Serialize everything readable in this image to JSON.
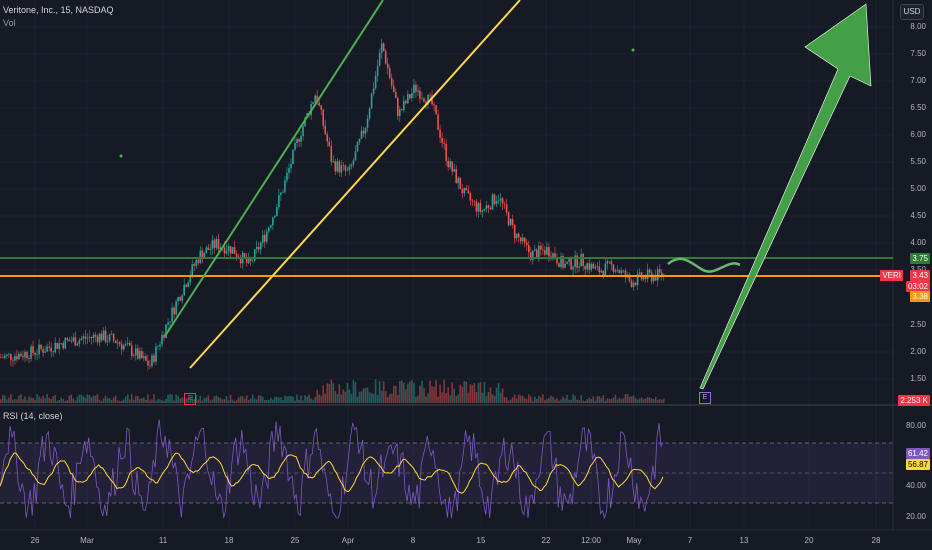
{
  "header": {
    "title": "Veritone, Inc., 15, NASDAQ",
    "vol_label": "Vol"
  },
  "currency_button": "USD",
  "price_axis": [
    "8.00",
    "7.50",
    "7.00",
    "6.50",
    "6.00",
    "5.50",
    "5.00",
    "4.50",
    "4.00",
    "3.50",
    "2.50",
    "2.00",
    "1.50"
  ],
  "rsi_axis": [
    "80.00",
    "40.00",
    "20.00"
  ],
  "time_axis": [
    "26",
    "Mar",
    "11",
    "18",
    "25",
    "Apr",
    "8",
    "15",
    "22",
    "12:00",
    "May",
    "7",
    "13",
    "20",
    "28"
  ],
  "price_labels": {
    "symbol": "VERI",
    "resistance": "3.75",
    "last": "3.43",
    "countdown": "03:02",
    "support": "3.38",
    "volume": "2.253 K"
  },
  "rsi": {
    "label": "RSI (14, close)",
    "value": "61.42",
    "ma_value": "56.87"
  },
  "earnings_markers": [
    "E",
    "E"
  ],
  "colors": {
    "background": "#161a25",
    "up": "#26a69a",
    "down": "#ef5350",
    "resistance": "#2e7d32",
    "support": "#ff9800",
    "channel_green": "#4caf50",
    "channel_yellow": "#ffd54f",
    "arrow": "#43a047",
    "rsi_line": "#7e57c2",
    "rsi_ma": "#fdd835",
    "symbol_tag": "#f23645"
  },
  "chart_data": {
    "type": "candlestick",
    "timeframe": "15",
    "x_labels": [
      "26",
      "Mar",
      "11",
      "18",
      "25",
      "Apr",
      "8",
      "15",
      "22",
      "12:00",
      "May",
      "7",
      "13",
      "20",
      "28"
    ],
    "close_path": [
      1.9,
      1.95,
      2.0,
      2.1,
      2.2,
      2.25,
      2.3,
      2.2,
      2.0,
      1.75,
      2.5,
      3.2,
      3.8,
      4.0,
      3.9,
      3.6,
      4.2,
      5.0,
      6.0,
      6.8,
      5.5,
      5.3,
      6.2,
      7.7,
      6.4,
      6.9,
      6.6,
      5.5,
      4.9,
      4.6,
      4.9,
      4.2,
      3.8,
      3.9,
      3.6,
      3.7,
      3.5,
      3.6,
      3.3,
      3.4,
      3.43
    ],
    "ylim": [
      1.3,
      8.3
    ],
    "horizontal_lines": [
      3.75,
      3.38
    ],
    "rsi_ylim": [
      15,
      90
    ],
    "rsi_levels": [
      70,
      30
    ]
  }
}
